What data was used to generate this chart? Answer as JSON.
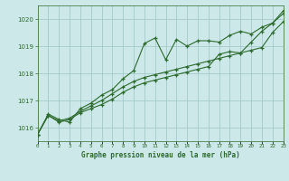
{
  "title": "Graphe pression niveau de la mer (hPa)",
  "xlabel_hours": [
    0,
    1,
    2,
    3,
    4,
    5,
    6,
    7,
    8,
    9,
    10,
    11,
    12,
    13,
    14,
    15,
    16,
    17,
    18,
    19,
    20,
    21,
    22,
    23
  ],
  "ylim": [
    1015.5,
    1020.5
  ],
  "yticks": [
    1016,
    1017,
    1018,
    1019,
    1020
  ],
  "bg_color": "#cce8e8",
  "line_color": "#2d6a2d",
  "grid_color": "#9ec4c4",
  "line1": [
    1015.75,
    1016.5,
    1016.3,
    1016.2,
    1016.7,
    1016.9,
    1017.2,
    1017.4,
    1017.8,
    1018.1,
    1019.1,
    1019.3,
    1018.5,
    1019.25,
    1019.0,
    1019.2,
    1019.2,
    1019.15,
    1019.4,
    1019.55,
    1019.45,
    1019.7,
    1019.85,
    1020.3
  ],
  "line2": [
    1015.75,
    1016.45,
    1016.2,
    1016.3,
    1016.55,
    1016.7,
    1016.85,
    1017.05,
    1017.3,
    1017.5,
    1017.65,
    1017.75,
    1017.85,
    1017.95,
    1018.05,
    1018.15,
    1018.25,
    1018.7,
    1018.8,
    1018.75,
    1019.15,
    1019.55,
    1019.85,
    1020.2
  ],
  "line3": [
    1015.75,
    1016.45,
    1016.25,
    1016.35,
    1016.6,
    1016.8,
    1017.0,
    1017.25,
    1017.5,
    1017.7,
    1017.85,
    1017.95,
    1018.05,
    1018.15,
    1018.25,
    1018.35,
    1018.45,
    1018.55,
    1018.65,
    1018.75,
    1018.85,
    1018.95,
    1019.5,
    1019.9
  ]
}
